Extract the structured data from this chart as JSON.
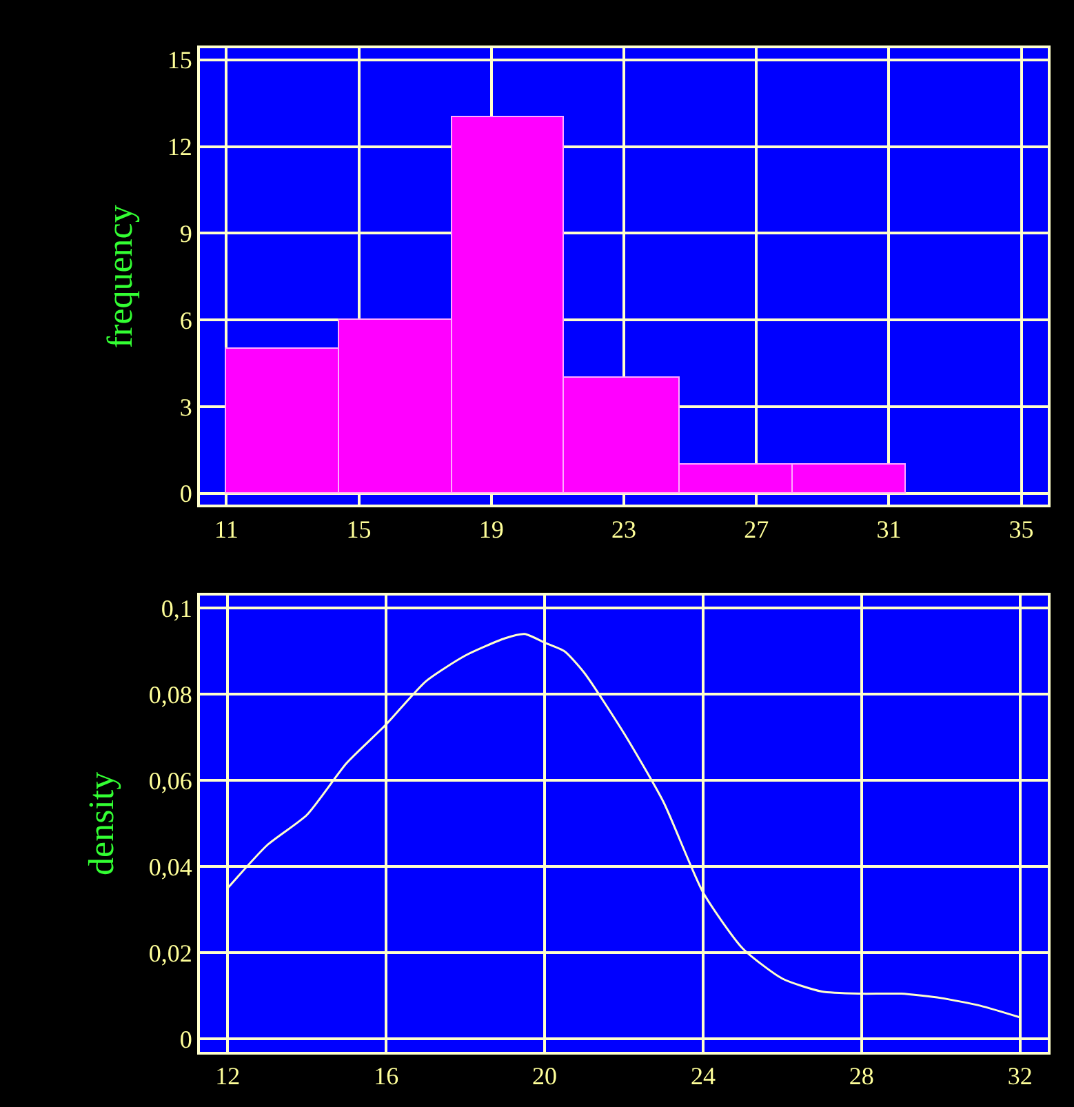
{
  "chart_data": [
    {
      "type": "histogram",
      "ylabel": "frequency",
      "bins": [
        11,
        14.4,
        17.8,
        21.2,
        24.7,
        28.1,
        31.5
      ],
      "values": [
        5,
        6,
        13,
        4,
        1,
        1
      ],
      "color": "#ff00ff",
      "xlim": [
        10.2,
        35.8
      ],
      "xticks": [
        11,
        15,
        19,
        23,
        27,
        31,
        35
      ],
      "ylim": [
        -0.4,
        15.4
      ],
      "yticks": [
        0,
        3,
        6,
        9,
        12,
        15
      ],
      "grid": true
    },
    {
      "type": "line",
      "ylabel": "density",
      "color": "#ffffcc",
      "x": [
        12,
        13,
        14,
        15,
        16,
        17,
        18,
        19,
        19.5,
        20,
        20.5,
        21,
        22,
        23,
        24,
        25,
        26,
        27,
        28,
        29,
        30,
        31,
        32
      ],
      "values": [
        0.035,
        0.045,
        0.052,
        0.064,
        0.073,
        0.083,
        0.089,
        0.093,
        0.094,
        0.092,
        0.09,
        0.085,
        0.071,
        0.055,
        0.034,
        0.021,
        0.014,
        0.011,
        0.0105,
        0.0105,
        0.0095,
        0.0077,
        0.005
      ],
      "xlim": [
        11.3,
        32.7
      ],
      "xticks": [
        12,
        16,
        20,
        24,
        28,
        32
      ],
      "ylim": [
        -0.003,
        0.103
      ],
      "yticks": [
        {
          "value": 0,
          "label": "0"
        },
        {
          "value": 0.02,
          "label": "0,02"
        },
        {
          "value": 0.04,
          "label": "0,04"
        },
        {
          "value": 0.06,
          "label": "0,06"
        },
        {
          "value": 0.08,
          "label": "0,08"
        },
        {
          "value": 0.1,
          "label": "0,1"
        }
      ],
      "grid": true
    }
  ]
}
